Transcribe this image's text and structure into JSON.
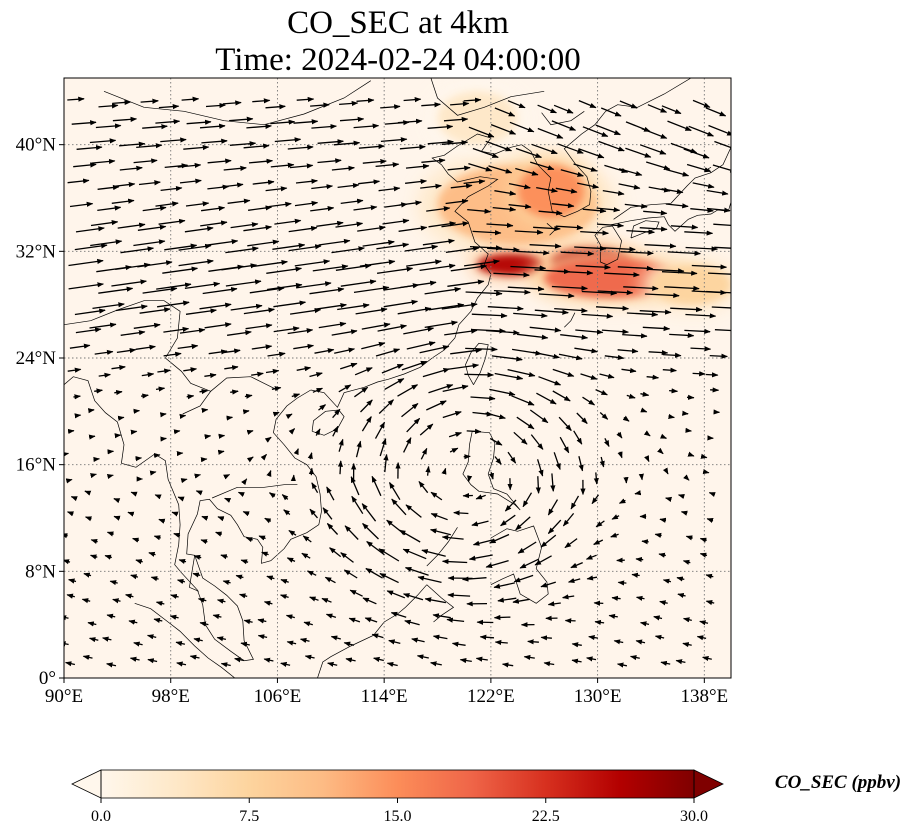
{
  "title": {
    "line1": "CO_SEC at 4km",
    "line2": "Time: 2024-02-24 04:00:00"
  },
  "map": {
    "projection": "PlateCarree",
    "lon_range": [
      90,
      140
    ],
    "lat_range": [
      0,
      45
    ],
    "x_ticks": [
      {
        "value": 90,
        "label": "90°E"
      },
      {
        "value": 98,
        "label": "98°E"
      },
      {
        "value": 106,
        "label": "106°E"
      },
      {
        "value": 114,
        "label": "114°E"
      },
      {
        "value": 122,
        "label": "122°E"
      },
      {
        "value": 130,
        "label": "130°E"
      },
      {
        "value": 138,
        "label": "138°E"
      }
    ],
    "y_ticks": [
      {
        "value": 0,
        "label": "0°"
      },
      {
        "value": 8,
        "label": "8°N"
      },
      {
        "value": 16,
        "label": "16°N"
      },
      {
        "value": 24,
        "label": "24°N"
      },
      {
        "value": 32,
        "label": "32°N"
      },
      {
        "value": 40,
        "label": "40°N"
      }
    ],
    "gridlines": "dotted",
    "background_color": "#fff5eb",
    "coastline_color": "#000000",
    "vector_color": "#000000",
    "plumes": [
      {
        "name": "north-china-plume",
        "lon": 124,
        "lat": 35.5,
        "rlon": 6,
        "rlat": 3,
        "intensity": 12
      },
      {
        "name": "korea-plume",
        "lon": 126.5,
        "lat": 36.5,
        "rlon": 2.5,
        "rlat": 2,
        "intensity": 15
      },
      {
        "name": "east-china-sea-core-west",
        "lon": 123.5,
        "lat": 31,
        "rlon": 2.5,
        "rlat": 0.8,
        "intensity": 28
      },
      {
        "name": "east-china-sea-core-east",
        "lon": 129.5,
        "lat": 31.2,
        "rlon": 3,
        "rlat": 1,
        "intensity": 27
      },
      {
        "name": "southern-japan-band",
        "lon": 131,
        "lat": 30,
        "rlon": 5,
        "rlat": 1.5,
        "intensity": 17
      },
      {
        "name": "pacific-tail",
        "lon": 137,
        "lat": 29.5,
        "rlon": 3,
        "rlat": 1.5,
        "intensity": 9
      },
      {
        "name": "northern-faint",
        "lon": 121,
        "lat": 42,
        "rlon": 3,
        "rlat": 2,
        "intensity": 4
      }
    ]
  },
  "colorbar": {
    "label": "CO_SEC (ppbv)",
    "colormap": "OrRd",
    "vmin": 0.0,
    "vmax": 30.0,
    "extend": "both",
    "ticks": [
      {
        "value": 0.0,
        "label": "0.0"
      },
      {
        "value": 7.5,
        "label": "7.5"
      },
      {
        "value": 15.0,
        "label": "15.0"
      },
      {
        "value": 22.5,
        "label": "22.5"
      },
      {
        "value": 30.0,
        "label": "30.0"
      }
    ],
    "stops": [
      "#fff7ec",
      "#fee8c8",
      "#fdd49e",
      "#fdbb84",
      "#fc8d59",
      "#ef6548",
      "#d7301f",
      "#b30000",
      "#7f0000"
    ]
  }
}
